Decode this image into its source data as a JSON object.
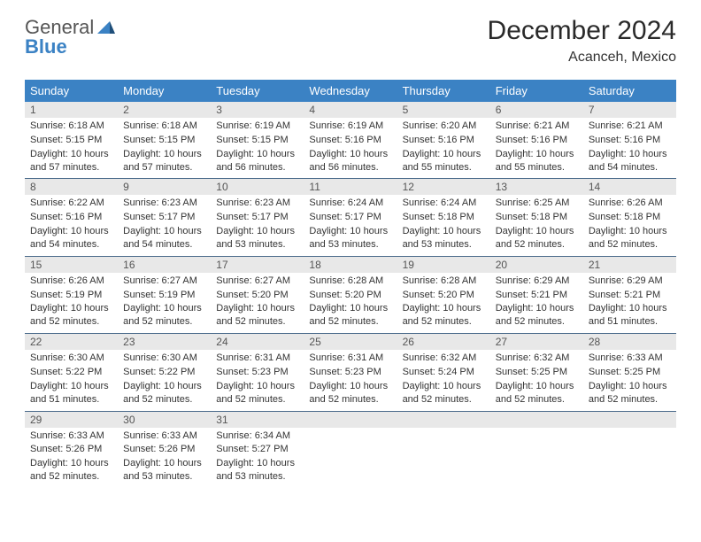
{
  "brand": {
    "part1": "General",
    "part2": "Blue"
  },
  "title": "December 2024",
  "location": "Acanceh, Mexico",
  "columns": [
    "Sunday",
    "Monday",
    "Tuesday",
    "Wednesday",
    "Thursday",
    "Friday",
    "Saturday"
  ],
  "colors": {
    "header_bg": "#3b82c4",
    "header_text": "#ffffff",
    "daynum_bg": "#e8e8e8",
    "rule": "#4a6a8a",
    "text": "#333333"
  },
  "typography": {
    "title_fontsize": 30,
    "location_fontsize": 16,
    "header_fontsize": 13,
    "cell_fontsize": 11
  },
  "weeks": [
    [
      {
        "d": "1",
        "sr": "6:18 AM",
        "ss": "5:15 PM",
        "dl": "10 hours and 57 minutes."
      },
      {
        "d": "2",
        "sr": "6:18 AM",
        "ss": "5:15 PM",
        "dl": "10 hours and 57 minutes."
      },
      {
        "d": "3",
        "sr": "6:19 AM",
        "ss": "5:15 PM",
        "dl": "10 hours and 56 minutes."
      },
      {
        "d": "4",
        "sr": "6:19 AM",
        "ss": "5:16 PM",
        "dl": "10 hours and 56 minutes."
      },
      {
        "d": "5",
        "sr": "6:20 AM",
        "ss": "5:16 PM",
        "dl": "10 hours and 55 minutes."
      },
      {
        "d": "6",
        "sr": "6:21 AM",
        "ss": "5:16 PM",
        "dl": "10 hours and 55 minutes."
      },
      {
        "d": "7",
        "sr": "6:21 AM",
        "ss": "5:16 PM",
        "dl": "10 hours and 54 minutes."
      }
    ],
    [
      {
        "d": "8",
        "sr": "6:22 AM",
        "ss": "5:16 PM",
        "dl": "10 hours and 54 minutes."
      },
      {
        "d": "9",
        "sr": "6:23 AM",
        "ss": "5:17 PM",
        "dl": "10 hours and 54 minutes."
      },
      {
        "d": "10",
        "sr": "6:23 AM",
        "ss": "5:17 PM",
        "dl": "10 hours and 53 minutes."
      },
      {
        "d": "11",
        "sr": "6:24 AM",
        "ss": "5:17 PM",
        "dl": "10 hours and 53 minutes."
      },
      {
        "d": "12",
        "sr": "6:24 AM",
        "ss": "5:18 PM",
        "dl": "10 hours and 53 minutes."
      },
      {
        "d": "13",
        "sr": "6:25 AM",
        "ss": "5:18 PM",
        "dl": "10 hours and 52 minutes."
      },
      {
        "d": "14",
        "sr": "6:26 AM",
        "ss": "5:18 PM",
        "dl": "10 hours and 52 minutes."
      }
    ],
    [
      {
        "d": "15",
        "sr": "6:26 AM",
        "ss": "5:19 PM",
        "dl": "10 hours and 52 minutes."
      },
      {
        "d": "16",
        "sr": "6:27 AM",
        "ss": "5:19 PM",
        "dl": "10 hours and 52 minutes."
      },
      {
        "d": "17",
        "sr": "6:27 AM",
        "ss": "5:20 PM",
        "dl": "10 hours and 52 minutes."
      },
      {
        "d": "18",
        "sr": "6:28 AM",
        "ss": "5:20 PM",
        "dl": "10 hours and 52 minutes."
      },
      {
        "d": "19",
        "sr": "6:28 AM",
        "ss": "5:20 PM",
        "dl": "10 hours and 52 minutes."
      },
      {
        "d": "20",
        "sr": "6:29 AM",
        "ss": "5:21 PM",
        "dl": "10 hours and 52 minutes."
      },
      {
        "d": "21",
        "sr": "6:29 AM",
        "ss": "5:21 PM",
        "dl": "10 hours and 51 minutes."
      }
    ],
    [
      {
        "d": "22",
        "sr": "6:30 AM",
        "ss": "5:22 PM",
        "dl": "10 hours and 51 minutes."
      },
      {
        "d": "23",
        "sr": "6:30 AM",
        "ss": "5:22 PM",
        "dl": "10 hours and 52 minutes."
      },
      {
        "d": "24",
        "sr": "6:31 AM",
        "ss": "5:23 PM",
        "dl": "10 hours and 52 minutes."
      },
      {
        "d": "25",
        "sr": "6:31 AM",
        "ss": "5:23 PM",
        "dl": "10 hours and 52 minutes."
      },
      {
        "d": "26",
        "sr": "6:32 AM",
        "ss": "5:24 PM",
        "dl": "10 hours and 52 minutes."
      },
      {
        "d": "27",
        "sr": "6:32 AM",
        "ss": "5:25 PM",
        "dl": "10 hours and 52 minutes."
      },
      {
        "d": "28",
        "sr": "6:33 AM",
        "ss": "5:25 PM",
        "dl": "10 hours and 52 minutes."
      }
    ],
    [
      {
        "d": "29",
        "sr": "6:33 AM",
        "ss": "5:26 PM",
        "dl": "10 hours and 52 minutes."
      },
      {
        "d": "30",
        "sr": "6:33 AM",
        "ss": "5:26 PM",
        "dl": "10 hours and 53 minutes."
      },
      {
        "d": "31",
        "sr": "6:34 AM",
        "ss": "5:27 PM",
        "dl": "10 hours and 53 minutes."
      },
      null,
      null,
      null,
      null
    ]
  ],
  "labels": {
    "sunrise": "Sunrise:",
    "sunset": "Sunset:",
    "daylight": "Daylight:"
  }
}
